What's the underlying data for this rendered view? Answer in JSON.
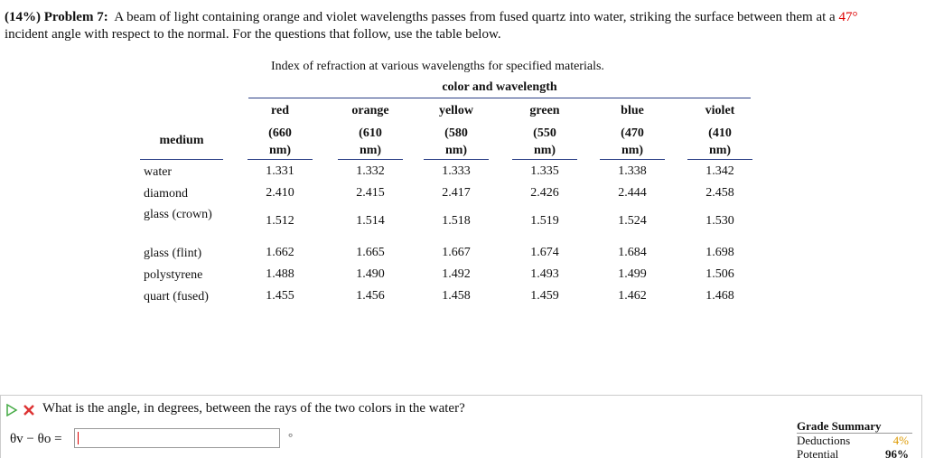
{
  "problem": {
    "label": "(14%) Problem 7:",
    "text_before": "A beam of light containing orange and violet wavelengths passes from fused quartz into water, striking the surface between them at a",
    "angle": "47°",
    "text_after": "incident angle with respect to the normal. For the questions that follow, use the table below."
  },
  "table": {
    "caption": "Index of refraction at various wavelengths for specified materials.",
    "group_header": "color and wavelength",
    "medium_header": "medium",
    "columns": [
      {
        "color": "red",
        "wavelength": "(660 nm)"
      },
      {
        "color": "orange",
        "wavelength": "(610 nm)"
      },
      {
        "color": "yellow",
        "wavelength": "(580 nm)"
      },
      {
        "color": "green",
        "wavelength": "(550 nm)"
      },
      {
        "color": "blue",
        "wavelength": "(470 nm)"
      },
      {
        "color": "violet",
        "wavelength": "(410 nm)"
      }
    ],
    "rows": [
      {
        "medium": "water",
        "values": [
          "1.331",
          "1.332",
          "1.333",
          "1.335",
          "1.338",
          "1.342"
        ]
      },
      {
        "medium": "diamond",
        "values": [
          "2.410",
          "2.415",
          "2.417",
          "2.426",
          "2.444",
          "2.458"
        ]
      },
      {
        "medium": "glass (crown)",
        "values": [
          "1.512",
          "1.514",
          "1.518",
          "1.519",
          "1.524",
          "1.530"
        ]
      },
      {
        "medium": "glass (flint)",
        "values": [
          "1.662",
          "1.665",
          "1.667",
          "1.674",
          "1.684",
          "1.698"
        ]
      },
      {
        "medium": "polystyrene",
        "values": [
          "1.488",
          "1.490",
          "1.492",
          "1.493",
          "1.499",
          "1.506"
        ]
      },
      {
        "medium": "quart (fused)",
        "values": [
          "1.455",
          "1.456",
          "1.458",
          "1.459",
          "1.462",
          "1.468"
        ]
      }
    ]
  },
  "question": {
    "text": "What is the angle, in degrees, between the rays of the two colors in the water?",
    "answer_label": "θv − θo =",
    "unit": "°"
  },
  "grade_summary": {
    "title": "Grade Summary",
    "deductions_label": "Deductions",
    "deductions": "4%",
    "potential_label": "Potential",
    "potential": "96%"
  }
}
